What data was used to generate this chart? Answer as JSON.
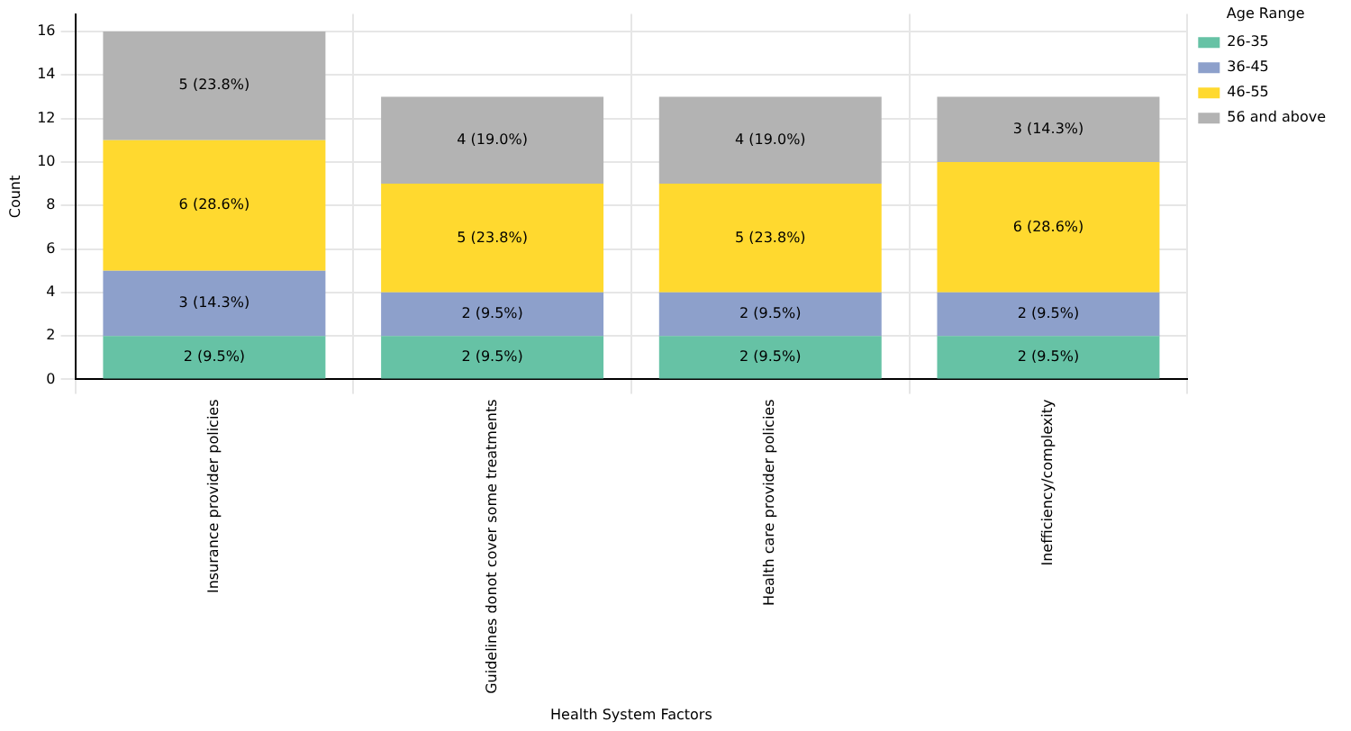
{
  "chart_data": {
    "type": "bar",
    "stacked": true,
    "xlabel": "Health System Factors",
    "ylabel": "Count",
    "legend_title": "Age Range",
    "legend": "top right",
    "grid": true,
    "categories": [
      "Insurance provider policies",
      "Guidelines donot cover some treatments",
      "Health care provider policies",
      "Inefficiency/complexity"
    ],
    "ylim": [
      0,
      16.8
    ],
    "yticks": [
      0,
      2,
      4,
      6,
      8,
      10,
      12,
      14,
      16
    ],
    "series": [
      {
        "name": "26-35",
        "color": "#66c2a5",
        "values": [
          2,
          2,
          2,
          2
        ],
        "value_labels": [
          "2 (9.5%)",
          "2 (9.5%)",
          "2 (9.5%)",
          "2 (9.5%)"
        ]
      },
      {
        "name": "36-45",
        "color": "#8da0cb",
        "values": [
          3,
          2,
          2,
          2
        ],
        "value_labels": [
          "3 (14.3%)",
          "2 (9.5%)",
          "2 (9.5%)",
          "2 (9.5%)"
        ]
      },
      {
        "name": "46-55",
        "color": "#ffd92f",
        "values": [
          6,
          5,
          5,
          6
        ],
        "value_labels": [
          "6 (28.6%)",
          "5 (23.8%)",
          "5 (23.8%)",
          "6 (28.6%)"
        ]
      },
      {
        "name": "56 and above",
        "color": "#b3b3b3",
        "values": [
          5,
          4,
          4,
          3
        ],
        "value_labels": [
          "5 (23.8%)",
          "4 (19.0%)",
          "4 (19.0%)",
          "3 (14.3%)"
        ]
      }
    ]
  }
}
